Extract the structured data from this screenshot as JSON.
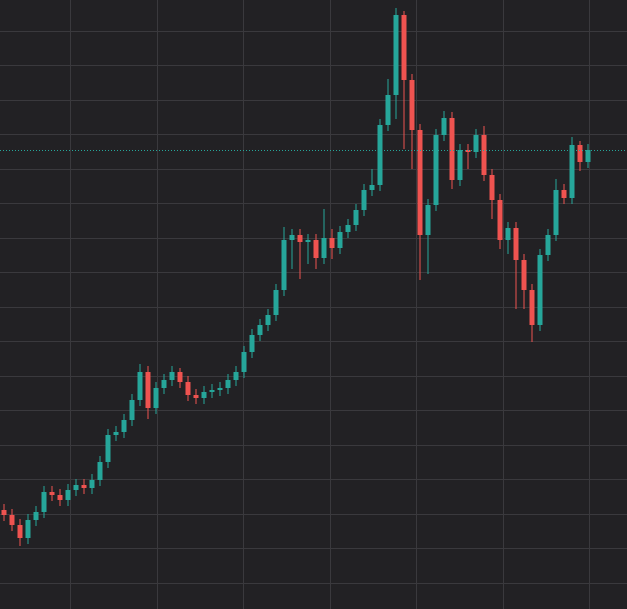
{
  "chart_data": {
    "type": "candlestick",
    "open": [
      99,
      94,
      84,
      71,
      89,
      97,
      117,
      114,
      109,
      119,
      124,
      121,
      129,
      147,
      174,
      177,
      189,
      209,
      237,
      201,
      221,
      229,
      237,
      227,
      214,
      211,
      217,
      219,
      221,
      229,
      237,
      257,
      274,
      284,
      294,
      319,
      369,
      374,
      367,
      369,
      351,
      371,
      361,
      377,
      384,
      399,
      419,
      424,
      484,
      514,
      594,
      529,
      479,
      374,
      404,
      474,
      491,
      429,
      459,
      457,
      474,
      434,
      409,
      369,
      381,
      349,
      319,
      284,
      354,
      374,
      419,
      411,
      464,
      447
    ],
    "high": [
      105,
      100,
      90,
      95,
      103,
      123,
      123,
      120,
      125,
      130,
      130,
      135,
      153,
      180,
      183,
      195,
      215,
      245,
      243,
      227,
      235,
      243,
      241,
      233,
      220,
      223,
      225,
      227,
      235,
      243,
      263,
      280,
      290,
      300,
      325,
      382,
      380,
      380,
      375,
      375,
      400,
      380,
      383,
      390,
      405,
      425,
      440,
      490,
      530,
      601,
      598,
      535,
      485,
      410,
      480,
      498,
      497,
      465,
      465,
      480,
      483,
      440,
      415,
      387,
      387,
      355,
      325,
      360,
      380,
      430,
      425,
      472,
      468,
      465
    ],
    "low": [
      88,
      78,
      63,
      65,
      83,
      91,
      108,
      103,
      103,
      113,
      115,
      115,
      123,
      141,
      168,
      171,
      183,
      203,
      190,
      195,
      215,
      223,
      221,
      208,
      205,
      205,
      211,
      213,
      215,
      223,
      231,
      251,
      268,
      278,
      288,
      313,
      340,
      330,
      345,
      340,
      345,
      350,
      355,
      371,
      378,
      393,
      413,
      418,
      478,
      490,
      460,
      440,
      329,
      335,
      398,
      468,
      420,
      423,
      440,
      451,
      428,
      390,
      360,
      355,
      300,
      300,
      267,
      278,
      348,
      368,
      405,
      405,
      438,
      441
    ],
    "close": [
      94,
      84,
      71,
      89,
      97,
      117,
      114,
      109,
      119,
      124,
      121,
      129,
      147,
      174,
      177,
      189,
      209,
      237,
      201,
      221,
      229,
      237,
      227,
      214,
      211,
      217,
      219,
      221,
      229,
      237,
      257,
      274,
      284,
      294,
      319,
      369,
      374,
      367,
      369,
      351,
      371,
      361,
      377,
      384,
      399,
      419,
      424,
      484,
      514,
      594,
      529,
      479,
      374,
      404,
      474,
      491,
      429,
      459,
      457,
      474,
      434,
      409,
      369,
      381,
      349,
      319,
      284,
      354,
      374,
      419,
      411,
      464,
      447,
      459
    ],
    "up_color": "#26a69a",
    "down_color": "#ef5350",
    "last_price": 459,
    "last_price_color": "#26a69a",
    "ylim": [
      0,
      609
    ],
    "yticks": [
      26,
      61,
      95,
      130,
      164,
      199,
      233,
      268,
      302,
      337,
      371,
      406,
      440,
      475,
      509,
      544,
      578
    ],
    "xticks": [
      8.25,
      19.125,
      29.875,
      40.75,
      51.5,
      62.375,
      73.125
    ],
    "grid": true
  }
}
